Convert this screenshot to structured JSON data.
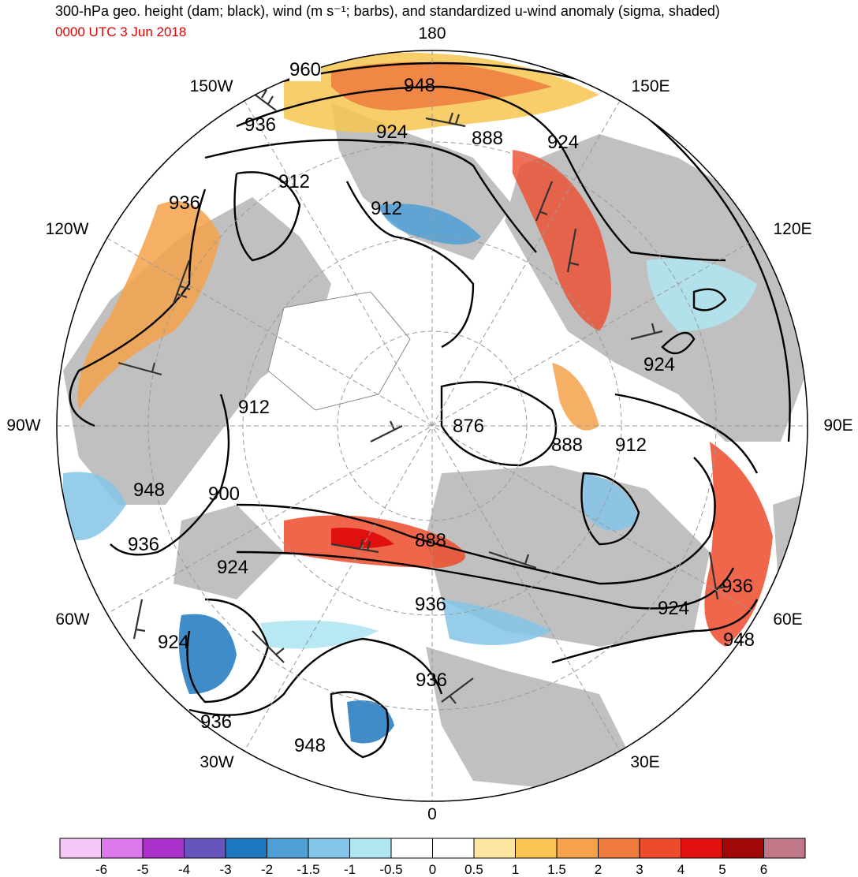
{
  "header": {
    "title": "300-hPa geo. height (dam; black), wind (m s⁻¹; barbs), and standardized u-wind anomaly (sigma, shaded)",
    "time": "0000 UTC 3 Jun 2018"
  },
  "longitude_labels": [
    "180",
    "150E",
    "120E",
    "90E",
    "60E",
    "30E",
    "0",
    "30W",
    "60W",
    "90W",
    "120W",
    "150W"
  ],
  "contour_labels": [
    "960",
    "948",
    "936",
    "924",
    "912",
    "888",
    "924",
    "912",
    "936",
    "924",
    "912",
    "876",
    "888",
    "912",
    "948",
    "900",
    "936",
    "924",
    "888",
    "936",
    "936",
    "924",
    "948",
    "924",
    "936",
    "948",
    "936"
  ],
  "colors": {
    "land": "#c0c0c0",
    "ocean": "#ffffff",
    "contour": "#000000",
    "title": "#000000",
    "time": "#e00000"
  },
  "colorbar": {
    "ticks": [
      "-6",
      "-5",
      "-4",
      "-3",
      "-2",
      "-1.5",
      "-1",
      "-0.5",
      "0",
      "0.5",
      "1",
      "1.5",
      "2",
      "3",
      "4",
      "5",
      "6"
    ],
    "colors": [
      "#f5c6f5",
      "#dd78ec",
      "#aa33cc",
      "#6655bb",
      "#1e78c0",
      "#4f9fd6",
      "#84c4e6",
      "#b0e6f2",
      "#ffffff",
      "#ffffff",
      "#fde7a0",
      "#f7c550",
      "#f5a24a",
      "#ef7a3e",
      "#ed4b2c",
      "#e01010",
      "#a00808",
      "#c07888"
    ]
  }
}
